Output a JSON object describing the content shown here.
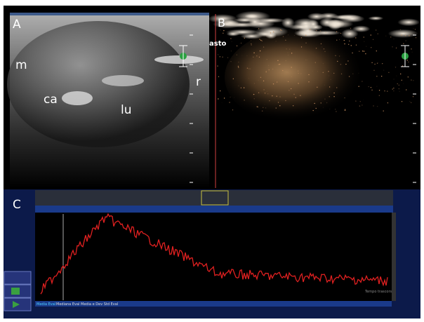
{
  "panels": {
    "a": {
      "label": "A",
      "annotations": [
        "m",
        "ca",
        "lu",
        "r"
      ]
    },
    "b": {
      "label": "B",
      "annotation": "asto"
    },
    "c": {
      "label": "C",
      "footer_tabs": [
        "Media Eval",
        "Mediana Eval",
        "Media e Dev Std Eval"
      ],
      "axis_note": "Tempo trascorso"
    }
  }
}
